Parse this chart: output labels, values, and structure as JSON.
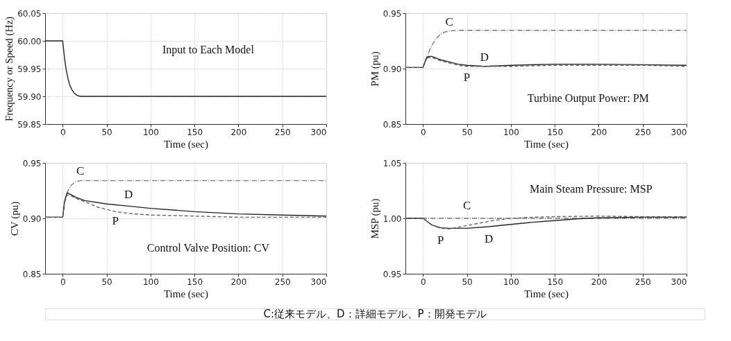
{
  "chart_data": [
    {
      "type": "line",
      "xlabel": "Time (sec)",
      "ylabel": "Frequency or Speed  (Hz)",
      "xlim": [
        -20,
        300
      ],
      "xticks": [
        0,
        50,
        100,
        150,
        200,
        250,
        300
      ],
      "ylim": [
        59.85,
        60.05
      ],
      "yticks": [
        59.85,
        {
          "value": 59.9,
          "label": "59.90"
        },
        59.95,
        {
          "value": 60,
          "label": "60.00"
        },
        60.05
      ],
      "grid": true,
      "series": [
        {
          "color": "#222222",
          "line_style": "solid",
          "x": [
            -20,
            0,
            1,
            2,
            3,
            4,
            6,
            8,
            10,
            13,
            16,
            20,
            25,
            300
          ],
          "values": [
            60,
            60,
            59.985,
            59.97,
            59.958,
            59.948,
            59.932,
            59.921,
            59.913,
            59.906,
            59.902,
            59.9,
            59.9,
            59.9
          ]
        }
      ],
      "annotations": [
        "Input to Each Model"
      ]
    },
    {
      "type": "line",
      "xlabel": "Time (sec)",
      "ylabel": "PM (pu)",
      "xlim": [
        -20,
        300
      ],
      "xticks": [
        0,
        50,
        100,
        150,
        200,
        250,
        300
      ],
      "ylim": [
        0.85,
        0.95
      ],
      "yticks": [
        0.85,
        {
          "value": 0.9,
          "label": "0.90"
        },
        0.95
      ],
      "grid": true,
      "series": [
        {
          "name": "C",
          "color": "#777777",
          "line_style": "dashdot",
          "x": [
            -20,
            0,
            5,
            10,
            15,
            20,
            25,
            30,
            40,
            300
          ],
          "values": [
            0.901,
            0.901,
            0.912,
            0.921,
            0.927,
            0.931,
            0.933,
            0.934,
            0.9345,
            0.9345
          ]
        },
        {
          "name": "D",
          "color": "#222222",
          "line_style": "solid",
          "x": [
            -20,
            0,
            3,
            6,
            10,
            20,
            30,
            40,
            50,
            70,
            100,
            150,
            200,
            250,
            300
          ],
          "values": [
            0.901,
            0.901,
            0.908,
            0.911,
            0.911,
            0.908,
            0.906,
            0.904,
            0.903,
            0.902,
            0.903,
            0.904,
            0.904,
            0.9035,
            0.903
          ]
        },
        {
          "name": "P",
          "color": "#666666",
          "line_style": "dashed",
          "x": [
            -20,
            0,
            3,
            6,
            10,
            20,
            30,
            40,
            50,
            70,
            100,
            150,
            200,
            250,
            300
          ],
          "values": [
            0.901,
            0.901,
            0.907,
            0.91,
            0.91,
            0.907,
            0.905,
            0.903,
            0.902,
            0.902,
            0.902,
            0.903,
            0.903,
            0.903,
            0.902
          ]
        }
      ],
      "annotations": [
        "Turbine Output Power: PM"
      ]
    },
    {
      "type": "line",
      "xlabel": "Time (sec)",
      "ylabel": "CV (pu)",
      "xlim": [
        -20,
        300
      ],
      "xticks": [
        0,
        50,
        100,
        150,
        200,
        250,
        300
      ],
      "ylim": [
        0.85,
        0.95
      ],
      "yticks": [
        0.85,
        {
          "value": 0.9,
          "label": "0.90"
        },
        0.95
      ],
      "grid": true,
      "series": [
        {
          "name": "C",
          "color": "#777777",
          "line_style": "dashdot",
          "x": [
            -20,
            0,
            3,
            6,
            10,
            15,
            20,
            300
          ],
          "values": [
            0.901,
            0.901,
            0.918,
            0.925,
            0.93,
            0.933,
            0.934,
            0.934
          ]
        },
        {
          "name": "D",
          "color": "#222222",
          "line_style": "solid",
          "x": [
            -20,
            0,
            2,
            5,
            8,
            15,
            25,
            50,
            75,
            100,
            150,
            200,
            250,
            300
          ],
          "values": [
            0.901,
            0.901,
            0.915,
            0.923,
            0.922,
            0.919,
            0.916,
            0.913,
            0.911,
            0.909,
            0.906,
            0.904,
            0.903,
            0.902
          ]
        },
        {
          "name": "P",
          "color": "#666666",
          "line_style": "dashed",
          "x": [
            -20,
            0,
            2,
            5,
            8,
            15,
            25,
            40,
            60,
            80,
            100,
            150,
            200,
            250,
            300
          ],
          "values": [
            0.901,
            0.901,
            0.914,
            0.921,
            0.921,
            0.918,
            0.915,
            0.91,
            0.906,
            0.904,
            0.903,
            0.902,
            0.901,
            0.901,
            0.901
          ]
        }
      ],
      "annotations": [
        "Control Valve Position: CV"
      ]
    },
    {
      "type": "line",
      "xlabel": "Time (sec)",
      "ylabel": "MSP (pu)",
      "xlim": [
        -20,
        300
      ],
      "xticks": [
        0,
        50,
        100,
        150,
        200,
        250,
        300
      ],
      "ylim": [
        0.95,
        1.05
      ],
      "yticks": [
        0.95,
        {
          "value": 1,
          "label": "1.00"
        },
        1.05
      ],
      "grid": true,
      "series": [
        {
          "name": "C",
          "color": "#777777",
          "line_style": "dashdot",
          "x": [
            -20,
            0,
            50,
            300
          ],
          "values": [
            1,
            1,
            1,
            1
          ]
        },
        {
          "name": "D",
          "color": "#222222",
          "line_style": "solid",
          "x": [
            -20,
            0,
            5,
            10,
            20,
            30,
            50,
            75,
            100,
            125,
            150,
            175,
            200,
            250,
            300
          ],
          "values": [
            1,
            1,
            0.997,
            0.994,
            0.9915,
            0.991,
            0.991,
            0.9925,
            0.9945,
            0.9965,
            0.998,
            0.9995,
            1.0005,
            1.001,
            1.001
          ]
        },
        {
          "name": "P",
          "color": "#666666",
          "line_style": "dashed",
          "x": [
            -20,
            0,
            5,
            10,
            20,
            30,
            40,
            60,
            80,
            100,
            125,
            150,
            200,
            250,
            300
          ],
          "values": [
            1,
            1,
            0.997,
            0.994,
            0.991,
            0.9905,
            0.992,
            0.995,
            0.998,
            1,
            1.001,
            1.0015,
            1.002,
            1.0015,
            1.0015
          ]
        }
      ],
      "annotations": [
        "Main Steam Pressure: MSP",
        "C:従来モデル、D：詳細モデル、P：開発モデル"
      ]
    }
  ]
}
